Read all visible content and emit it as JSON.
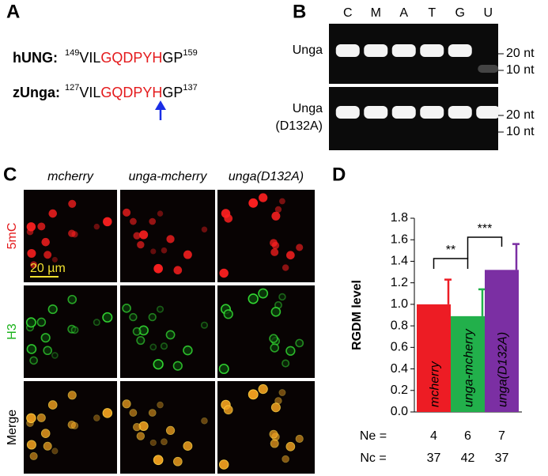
{
  "panels": [
    "A",
    "B",
    "C",
    "D"
  ],
  "sequences": [
    {
      "name": "hUNG:",
      "start": 149,
      "prefix": "VIL",
      "motif": "GQDPYH",
      "suffix": "GP",
      "end": 159
    },
    {
      "name": "zUnga:",
      "start": 127,
      "prefix": "VIL",
      "motif": "GQDPYH",
      "suffix": "GP",
      "end": 137
    }
  ],
  "gel": {
    "lanes": [
      "C",
      "M",
      "A",
      "T",
      "G",
      "U"
    ],
    "rows": [
      [
        "Unga"
      ],
      [
        "Unga",
        "(D132A)"
      ]
    ],
    "markers": [
      "20 nt",
      "10 nt"
    ]
  },
  "images": {
    "columns": [
      "mcherry",
      "unga-mcherry",
      "unga(D132A)"
    ],
    "rows": [
      "5mC",
      "H3",
      "Merge"
    ],
    "scale_bar": "20 µm"
  },
  "chart_data": {
    "type": "bar",
    "ylabel": "RGDM level",
    "categories": [
      "mcherry",
      "unga-mcherry",
      "unga(D132A)"
    ],
    "values": [
      1.0,
      0.89,
      1.32
    ],
    "errors": [
      0.23,
      0.25,
      0.24
    ],
    "colors": [
      "#ed1c24",
      "#22b04b",
      "#7b2fa3"
    ],
    "ylim": [
      0,
      1.8
    ],
    "yticks": [
      {
        "value": 0,
        "label": "0.0"
      },
      {
        "value": 0.2,
        "label": "0.2"
      },
      {
        "value": 0.4,
        "label": "0.4"
      },
      {
        "value": 0.6,
        "label": "0.6"
      },
      {
        "value": 0.8,
        "label": "0.8"
      },
      {
        "value": 1.0,
        "label": "1.0"
      },
      {
        "value": 1.2,
        "label": "1.2"
      },
      {
        "value": 1.4,
        "label": "1.4"
      },
      {
        "value": 1.6,
        "label": "1.6"
      },
      {
        "value": 1.8,
        "label": "1.8"
      }
    ],
    "annotations": [
      {
        "text": "**"
      },
      {
        "text": "***"
      }
    ],
    "ne_label": "Ne =",
    "ne": [
      4,
      6,
      7
    ],
    "nc_label": "Nc =",
    "nc": [
      37,
      42,
      37
    ]
  }
}
